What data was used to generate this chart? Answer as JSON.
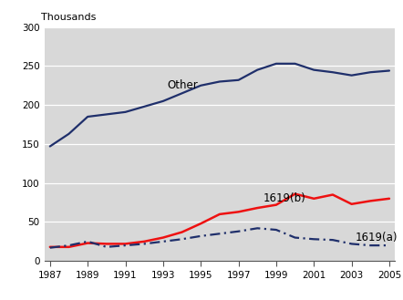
{
  "years": [
    1987,
    1988,
    1989,
    1990,
    1991,
    1992,
    1993,
    1994,
    1995,
    1996,
    1997,
    1998,
    1999,
    2000,
    2001,
    2002,
    2003,
    2004,
    2005
  ],
  "other": [
    147,
    163,
    185,
    188,
    191,
    198,
    205,
    215,
    225,
    230,
    232,
    245,
    253,
    253,
    245,
    242,
    238,
    242,
    244
  ],
  "line_1619b": [
    18,
    18,
    23,
    22,
    22,
    25,
    30,
    37,
    48,
    60,
    63,
    68,
    72,
    86,
    80,
    85,
    73,
    77,
    80
  ],
  "line_1619a": [
    17,
    20,
    25,
    18,
    20,
    22,
    25,
    28,
    32,
    35,
    38,
    42,
    40,
    30,
    28,
    27,
    22,
    20,
    20
  ],
  "other_label": "Other",
  "label_1619b": "1619(b)",
  "label_1619a": "1619(a)",
  "ylabel": "Thousands",
  "xlim": [
    1987,
    2005
  ],
  "ylim": [
    0,
    300
  ],
  "yticks": [
    0,
    50,
    100,
    150,
    200,
    250,
    300
  ],
  "xticks": [
    1987,
    1989,
    1991,
    1993,
    1995,
    1997,
    1999,
    2001,
    2003,
    2005
  ],
  "color_other": "#1f2f6b",
  "color_1619b": "#ee1111",
  "color_1619a": "#1f2f6b",
  "bg_color": "#d8d8d8",
  "fig_bg": "#ffffff",
  "grid_color": "#ffffff",
  "tick_label_size": 7.5,
  "ylabel_size": 8
}
